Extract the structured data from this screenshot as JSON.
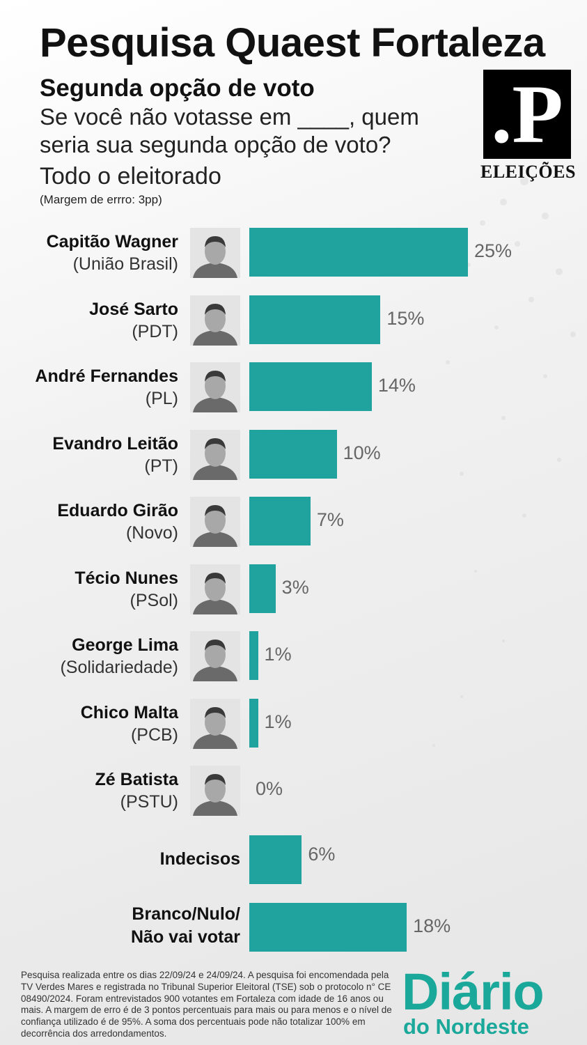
{
  "header": {
    "title": "Pesquisa Quaest Fortaleza",
    "subtitle": "Segunda opção de voto",
    "question": "Se você não votasse em ____, quem seria sua segunda opção de voto?",
    "universe": "Todo o eleitorado",
    "margin": "(Margem de errro: 3pp)"
  },
  "logo": {
    "mark": ".P",
    "caption": "ELEIÇÕES"
  },
  "chart_data": {
    "type": "bar",
    "orientation": "horizontal",
    "bar_color": "#20a39e",
    "categories": [
      "Capitão Wagner",
      "José Sarto",
      "André Fernandes",
      "Evandro Leitão",
      "Eduardo Girão",
      "Técio Nunes",
      "George Lima",
      "Chico Malta",
      "Zé Batista",
      "Indecisos",
      "Branco/Nulo/ Não vai votar"
    ],
    "values": [
      25,
      15,
      14,
      10,
      7,
      3,
      1,
      1,
      0,
      6,
      18
    ],
    "value_labels": [
      "25%",
      "15%",
      "14%",
      "10%",
      "7%",
      "3%",
      "1%",
      "1%",
      "0%",
      "6%",
      "18%"
    ],
    "candidates": [
      {
        "name": "Capitão Wagner",
        "party": "(União Brasil)",
        "value": 25,
        "label": "25%"
      },
      {
        "name": "José Sarto",
        "party": "(PDT)",
        "value": 15,
        "label": "15%"
      },
      {
        "name": "André Fernandes",
        "party": "(PL)",
        "value": 14,
        "label": "14%"
      },
      {
        "name": "Evandro Leitão",
        "party": "(PT)",
        "value": 10,
        "label": "10%"
      },
      {
        "name": "Eduardo Girão",
        "party": "(Novo)",
        "value": 7,
        "label": "7%"
      },
      {
        "name": "Técio Nunes",
        "party": "(PSol)",
        "value": 3,
        "label": "3%"
      },
      {
        "name": "George Lima",
        "party": "(Solidariedade)",
        "value": 1,
        "label": "1%"
      },
      {
        "name": "Chico Malta",
        "party": "(PCB)",
        "value": 1,
        "label": "1%"
      },
      {
        "name": "Zé Batista",
        "party": "(PSTU)",
        "value": 0,
        "label": "0%"
      }
    ],
    "others": [
      {
        "name": "Indecisos",
        "value": 6,
        "label": "6%"
      },
      {
        "name_line1": "Branco/Nulo/",
        "name_line2": "Não vai votar",
        "value": 18,
        "label": "18%"
      }
    ]
  },
  "footnote": "Pesquisa realizada entre os dias 22/09/24 e 24/09/24. A pesquisa foi encomendada pela TV Verdes Mares e registrada no Tribunal Superior Eleitoral (TSE) sob o protocolo n° CE 08490/2024. Foram entrevistados 900 votantes em Fortaleza com idade de 16 anos ou mais. A margem de erro é de 3 pontos percentuais para mais ou para menos e o nível de confiança utilizado é de 95%. A soma dos percentuais pode não totalizar 100% em decorrência dos arredondamentos.",
  "brand": {
    "line1": "Diário",
    "line2": "do Nordeste",
    "color": "#1aa89a"
  }
}
